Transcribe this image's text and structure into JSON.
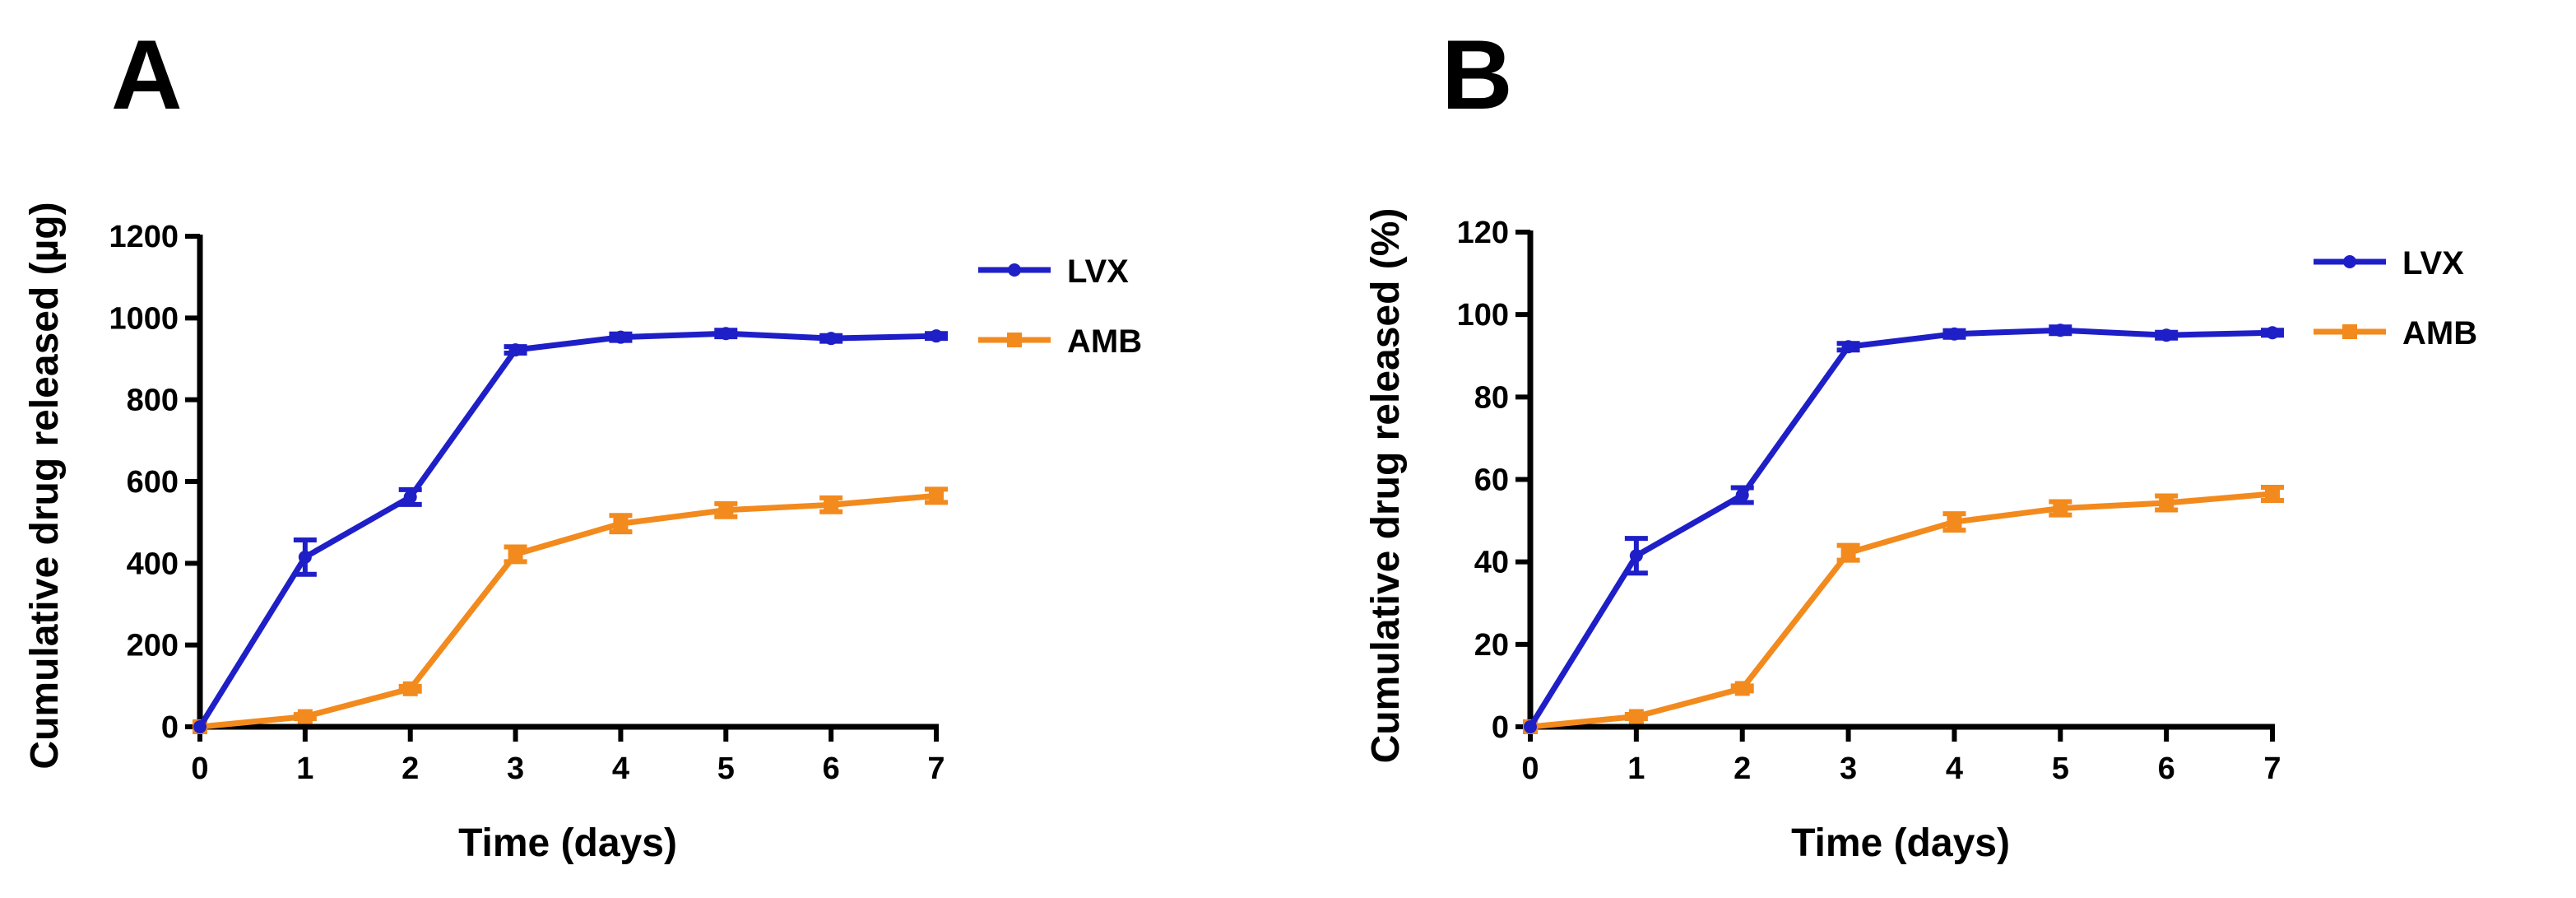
{
  "figure": {
    "panels": [
      "A",
      "B"
    ]
  },
  "chart_data": [
    {
      "panel": "A",
      "type": "line",
      "title": "",
      "xlabel": "Time (days)",
      "ylabel": "Cumulative drug released (µg)",
      "xlim": [
        0,
        7
      ],
      "ylim": [
        0,
        1200
      ],
      "xticks": [
        0,
        1,
        2,
        3,
        4,
        5,
        6,
        7
      ],
      "yticks": [
        0,
        200,
        400,
        600,
        800,
        1000,
        1200
      ],
      "grid": false,
      "legend_position": "top-right",
      "x": [
        0,
        1,
        2,
        3,
        4,
        5,
        6,
        7
      ],
      "series": [
        {
          "name": "LVX",
          "color": "#1f1fc8",
          "marker": "circle",
          "values": [
            0,
            415,
            562,
            922,
            953,
            962,
            950,
            956
          ],
          "errors": [
            0,
            42,
            18,
            8,
            8,
            8,
            7,
            6
          ]
        },
        {
          "name": "AMB",
          "color": "#f28a1d",
          "marker": "square",
          "values": [
            0,
            25,
            93,
            422,
            497,
            530,
            543,
            565
          ],
          "errors": [
            0,
            5,
            6,
            18,
            20,
            16,
            17,
            16
          ]
        }
      ]
    },
    {
      "panel": "B",
      "type": "line",
      "title": "",
      "xlabel": "Time (days)",
      "ylabel": "Cumulative drug released (%)",
      "xlim": [
        0,
        7
      ],
      "ylim": [
        0,
        120
      ],
      "xticks": [
        0,
        1,
        2,
        3,
        4,
        5,
        6,
        7
      ],
      "yticks": [
        0,
        20,
        40,
        60,
        80,
        100,
        120
      ],
      "grid": false,
      "legend_position": "top-right",
      "x": [
        0,
        1,
        2,
        3,
        4,
        5,
        6,
        7
      ],
      "series": [
        {
          "name": "LVX",
          "color": "#1f1fc8",
          "marker": "circle",
          "values": [
            0,
            41.5,
            56.2,
            92.2,
            95.3,
            96.2,
            95.0,
            95.6
          ],
          "errors": [
            0,
            4.2,
            1.8,
            0.8,
            0.8,
            0.8,
            0.7,
            0.6
          ]
        },
        {
          "name": "AMB",
          "color": "#f28a1d",
          "marker": "square",
          "values": [
            0,
            2.5,
            9.3,
            42.2,
            49.7,
            53.0,
            54.3,
            56.5
          ],
          "errors": [
            0,
            0.5,
            0.6,
            1.8,
            2.0,
            1.6,
            1.7,
            1.6
          ]
        }
      ]
    }
  ]
}
